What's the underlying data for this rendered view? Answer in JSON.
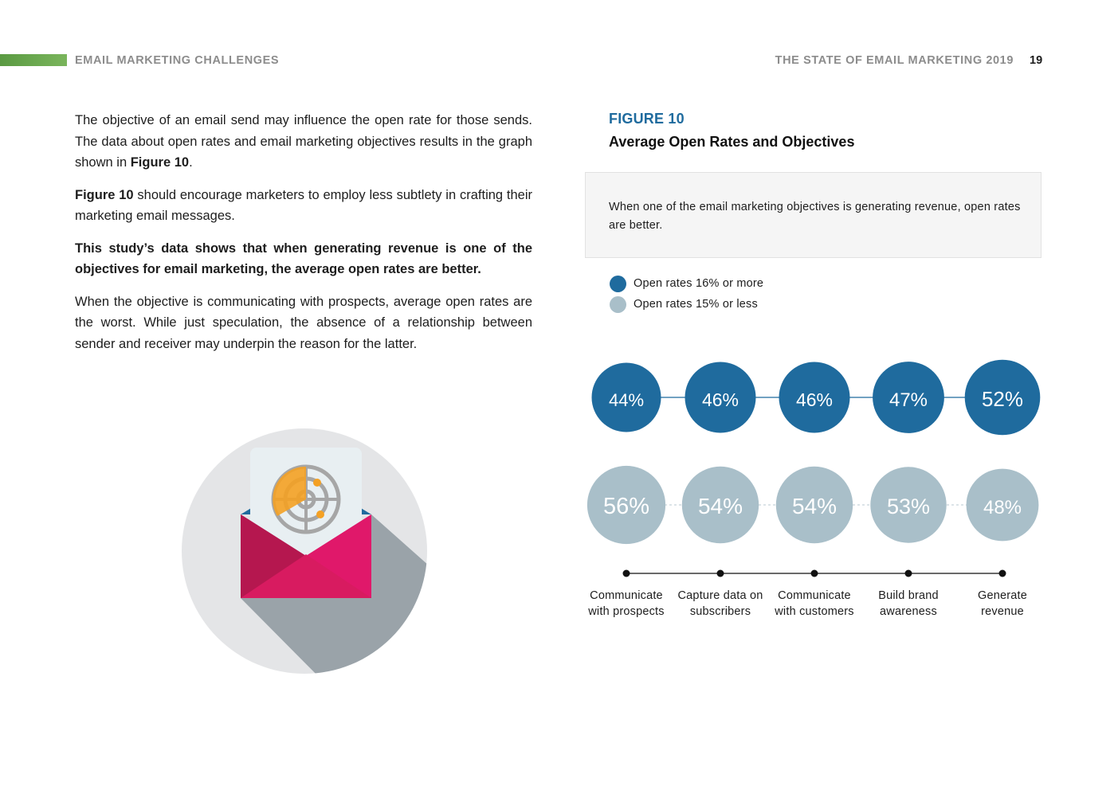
{
  "header": {
    "section": "EMAIL MARKETING CHALLENGES",
    "publication": "THE STATE OF EMAIL MARKETING 2019",
    "page_number": "19"
  },
  "body": {
    "p1_text": "The objective of an email send may influence the open rate for those sends. The data about open rates and email marketing objectives results in the graph shown in ",
    "p1_bold": "Figure 10",
    "p1_end": ".",
    "p2_bold": "Figure 10",
    "p2_text": " should encourage marketers to employ less subtlety in crafting their marketing email messages.",
    "p3_bold": "This study’s data shows that when generating revenue is one of the objectives for email marketing, the average open rates are better.",
    "p4_text": "When the objective is communicating with prospects, average open rates are the worst. While just speculation, the absence of a relationship between sender and receiver may underpin the reason for the latter."
  },
  "figure": {
    "label": "FIGURE 10",
    "title": "Average Open Rates and Objectives",
    "callout": "When one of the email marketing objectives is generating revenue, open rates are better."
  },
  "colors": {
    "high": "#1f6b9e",
    "low": "#a9bfc9",
    "accent_green": "#6aa84f",
    "envelope": "#d81b60",
    "radar": "#f4a124"
  },
  "chart_data": {
    "type": "bubble-comparison",
    "categories": [
      "Communicate with prospects",
      "Capture data on subscribers",
      "Communicate with customers",
      "Build brand awareness",
      "Generate revenue"
    ],
    "category_lines": [
      [
        "Communicate",
        "with prospects"
      ],
      [
        "Capture data on",
        "subscribers"
      ],
      [
        "Communicate",
        "with customers"
      ],
      [
        "Build brand",
        "awareness"
      ],
      [
        "Generate",
        "revenue"
      ]
    ],
    "series": [
      {
        "name": "Open rates 16% or more",
        "values": [
          44,
          46,
          46,
          47,
          52
        ],
        "labels": [
          "44%",
          "46%",
          "46%",
          "47%",
          "52%"
        ]
      },
      {
        "name": "Open rates 15% or less",
        "values": [
          56,
          54,
          54,
          53,
          48
        ],
        "labels": [
          "56%",
          "54%",
          "54%",
          "53%",
          "48%"
        ]
      }
    ],
    "unit": "%"
  }
}
